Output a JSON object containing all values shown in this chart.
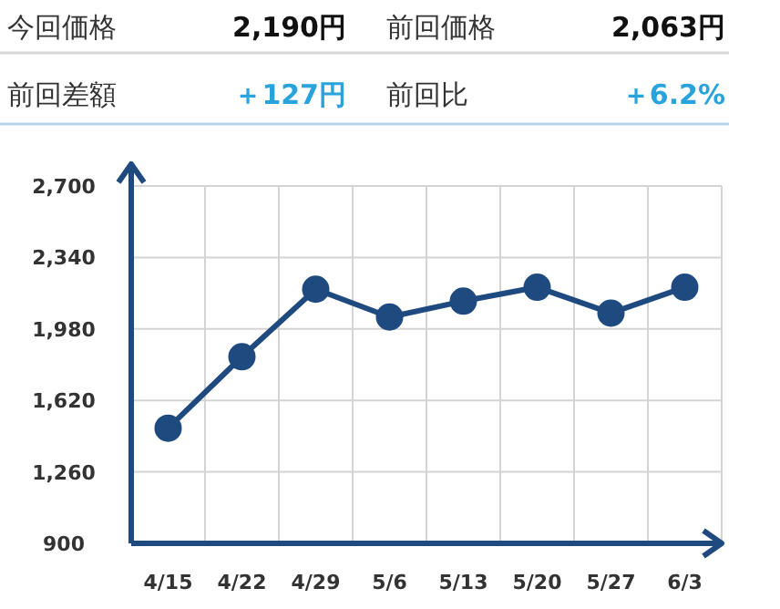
{
  "chart_data": {
    "type": "line",
    "annotations": [
      "今回価格",
      "2,190円",
      "前回価格",
      "2,063円",
      "前回差額",
      "＋127円",
      "前回比",
      "＋6.2%"
    ],
    "categories": [
      "4/15",
      "4/22",
      "4/29",
      "5/6",
      "5/13",
      "5/20",
      "5/27",
      "6/3"
    ],
    "values": [
      1480,
      1840,
      2180,
      2040,
      2120,
      2190,
      2060,
      2190
    ],
    "color": "#1f4a80",
    "ylim": [
      900,
      2700
    ],
    "yticks": [
      {
        "value": 900,
        "label": "900"
      },
      {
        "value": 1260,
        "label": "1,260"
      },
      {
        "value": 1620,
        "label": "1,620"
      },
      {
        "value": 1980,
        "label": "1,980"
      },
      {
        "value": 2340,
        "label": "2,340"
      },
      {
        "value": 2700,
        "label": "2,700"
      }
    ],
    "grid": true,
    "marker": "circle"
  }
}
